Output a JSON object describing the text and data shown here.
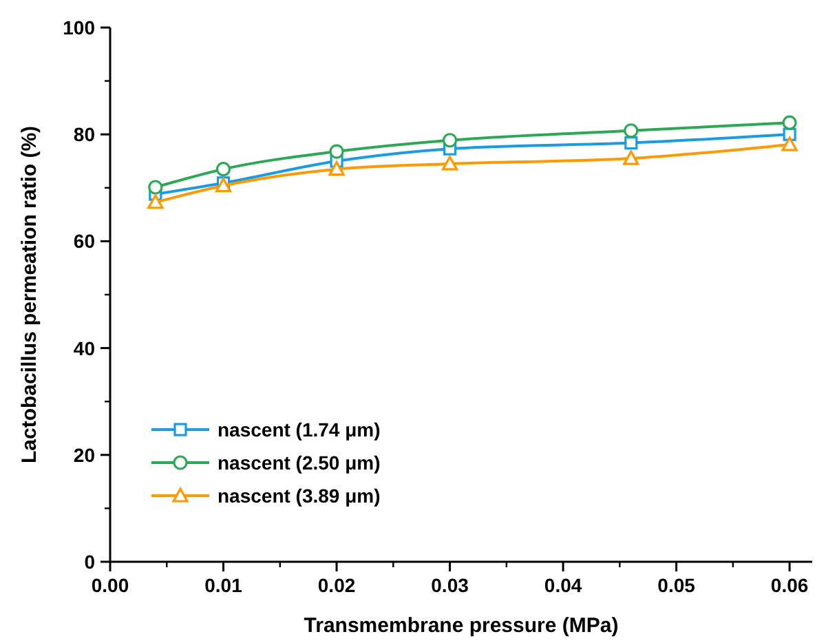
{
  "chart_data": {
    "type": "line",
    "xlabel": "Transmembrane pressure (MPa)",
    "ylabel": "Lactobacillus permeation ratio (%)",
    "x": [
      0.004,
      0.01,
      0.02,
      0.03,
      0.046,
      0.06
    ],
    "xlim": [
      0,
      0.062
    ],
    "xticks": [
      {
        "value": 0,
        "label": "0.00"
      },
      {
        "value": 0.01,
        "label": "0.01"
      },
      {
        "value": 0.02,
        "label": "0.02"
      },
      {
        "value": 0.03,
        "label": "0.03"
      },
      {
        "value": 0.04,
        "label": "0.04"
      },
      {
        "value": 0.05,
        "label": "0.05"
      },
      {
        "value": 0.06,
        "label": "0.06"
      }
    ],
    "ylim": [
      0,
      100
    ],
    "yticks": [
      0,
      20,
      40,
      60,
      80,
      100
    ],
    "grid": false,
    "legend": "bottom left",
    "series": [
      {
        "name": "nascent (1.74 μm)",
        "color": "#1a9be6",
        "marker": "square",
        "values": [
          68.8,
          70.9,
          75,
          77.3,
          78.4,
          80
        ]
      },
      {
        "name": "nascent (2.50 μm)",
        "color": "#2ca856",
        "marker": "circle",
        "values": [
          70.1,
          73.5,
          76.8,
          78.9,
          80.7,
          82.2
        ]
      },
      {
        "name": "nascent (3.89 μm)",
        "color": "#ff9900",
        "marker": "triangle",
        "values": [
          67.3,
          70.4,
          73.5,
          74.5,
          75.5,
          78.1
        ]
      }
    ]
  }
}
